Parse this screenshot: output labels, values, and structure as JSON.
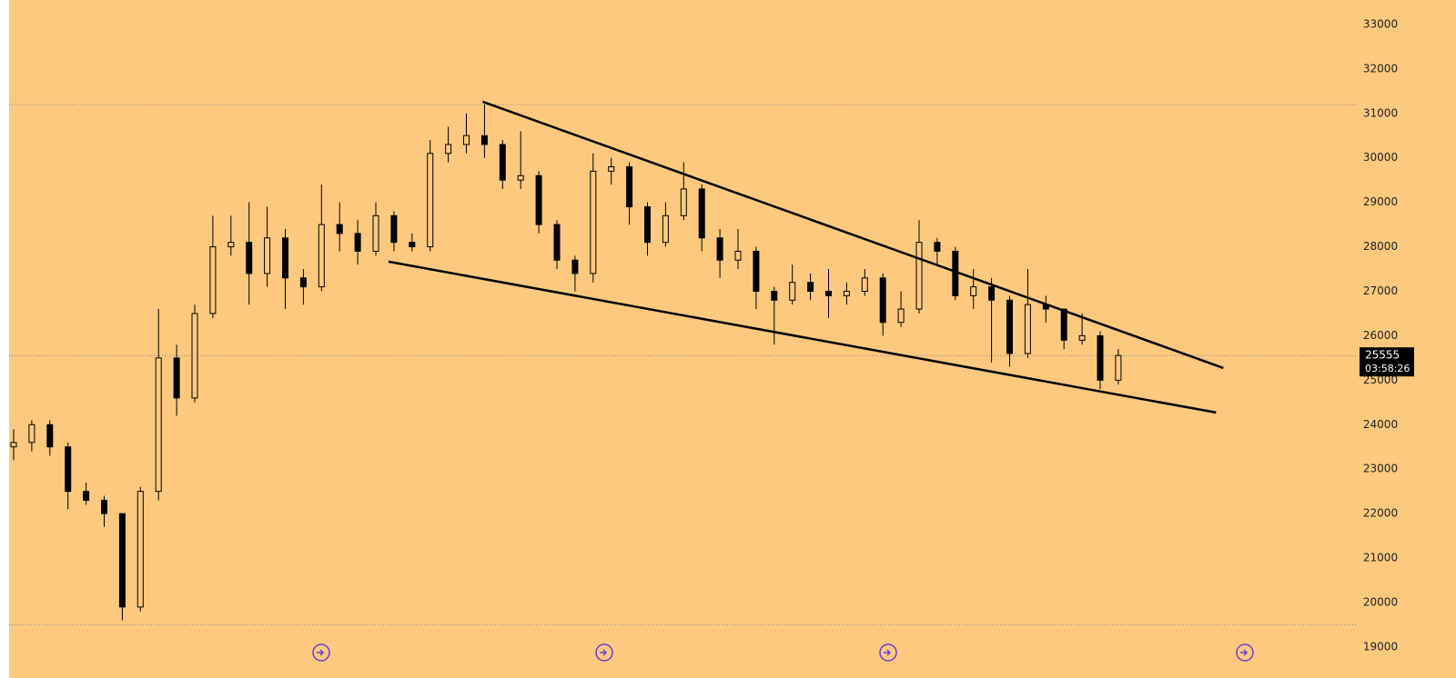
{
  "chart_data": {
    "type": "candlestick",
    "color": "#000000",
    "background": "#fcc97e",
    "categories": [
      null,
      null,
      null,
      null,
      null,
      null,
      null,
      null,
      null,
      null,
      null,
      null,
      null,
      null,
      null,
      null,
      null,
      null,
      null,
      null,
      null,
      null,
      null,
      null,
      null,
      null,
      null,
      null,
      null,
      null,
      null,
      null,
      null,
      null,
      null,
      null,
      null,
      null,
      null,
      null,
      null,
      null,
      null,
      null,
      null,
      null,
      null,
      null,
      null,
      null,
      null,
      null,
      null,
      null,
      null,
      null,
      null,
      null,
      null,
      null,
      null,
      null
    ],
    "open": [
      23500,
      23600,
      24000,
      23500,
      22500,
      22300,
      22000,
      19900,
      22500,
      25500,
      24600,
      26500,
      28000,
      28100,
      27400,
      28200,
      27300,
      27100,
      28500,
      28300,
      27900,
      28700,
      28100,
      28000,
      30100,
      30300,
      30500,
      30300,
      29500,
      29600,
      28500,
      27700,
      27400,
      29700,
      29800,
      28900,
      28100,
      28700,
      29300,
      28200,
      27700,
      27900,
      27000,
      26800,
      27200,
      27000,
      26900,
      27000,
      27300,
      26300,
      26600,
      28100,
      27900,
      26900,
      27100,
      26800,
      25600,
      26700,
      26600,
      25900,
      26000,
      25000
    ],
    "high": [
      23900,
      24100,
      24100,
      23600,
      22700,
      22400,
      22000,
      22600,
      26600,
      25800,
      26700,
      28700,
      28700,
      29000,
      28900,
      28400,
      27500,
      29400,
      29000,
      28600,
      29000,
      28800,
      28300,
      30400,
      30700,
      31000,
      31200,
      30400,
      30600,
      29700,
      28600,
      27800,
      30100,
      30000,
      29900,
      29000,
      29000,
      29900,
      29400,
      28400,
      28400,
      28000,
      27100,
      27600,
      27400,
      27500,
      27200,
      27500,
      27400,
      27000,
      28600,
      28200,
      28000,
      27500,
      27300,
      26900,
      27500,
      26900,
      26600,
      26500,
      26100,
      25700
    ],
    "low": [
      23200,
      23400,
      23300,
      22100,
      22200,
      21700,
      19600,
      19800,
      22300,
      24200,
      24500,
      26400,
      27800,
      26700,
      27100,
      26600,
      26700,
      27000,
      27900,
      27600,
      27800,
      27900,
      27900,
      27900,
      29900,
      30100,
      30000,
      29300,
      29300,
      28300,
      27500,
      27000,
      27200,
      29400,
      28500,
      27800,
      28000,
      28600,
      27900,
      27300,
      27500,
      26600,
      25800,
      26700,
      26800,
      26400,
      26700,
      26900,
      26000,
      26200,
      26500,
      27600,
      26800,
      26600,
      25400,
      25300,
      25500,
      26300,
      25700,
      25800,
      24800,
      24900
    ],
    "close": [
      23600,
      24000,
      23500,
      22500,
      22300,
      22000,
      19900,
      22500,
      25500,
      24600,
      26500,
      28000,
      28100,
      27400,
      28200,
      27300,
      27100,
      28500,
      28300,
      27900,
      28700,
      28100,
      28000,
      30100,
      30300,
      30500,
      30300,
      29500,
      29600,
      28500,
      27700,
      27400,
      29700,
      29800,
      28900,
      28100,
      28700,
      29300,
      28200,
      27700,
      27900,
      27000,
      26800,
      27200,
      27000,
      26900,
      27000,
      27300,
      26300,
      26600,
      28100,
      27900,
      26900,
      27100,
      26800,
      25600,
      26700,
      26600,
      25900,
      26000,
      25000,
      25555
    ],
    "ylim": [
      18610,
      33550
    ],
    "yticks": [
      19000,
      20000,
      21000,
      22000,
      23000,
      24000,
      25000,
      26000,
      27000,
      28000,
      29000,
      30000,
      31000,
      32000,
      33000
    ],
    "hlines": [
      31200,
      19500
    ],
    "trendlines": [
      {
        "x": [
          25.9,
          66.8
        ],
        "y": [
          31263,
          25275
        ]
      },
      {
        "x": [
          20.7,
          66.4
        ],
        "y": [
          27666,
          24273
        ]
      }
    ],
    "last_price": {
      "value": 25555,
      "countdown": "03:58:26"
    }
  }
}
